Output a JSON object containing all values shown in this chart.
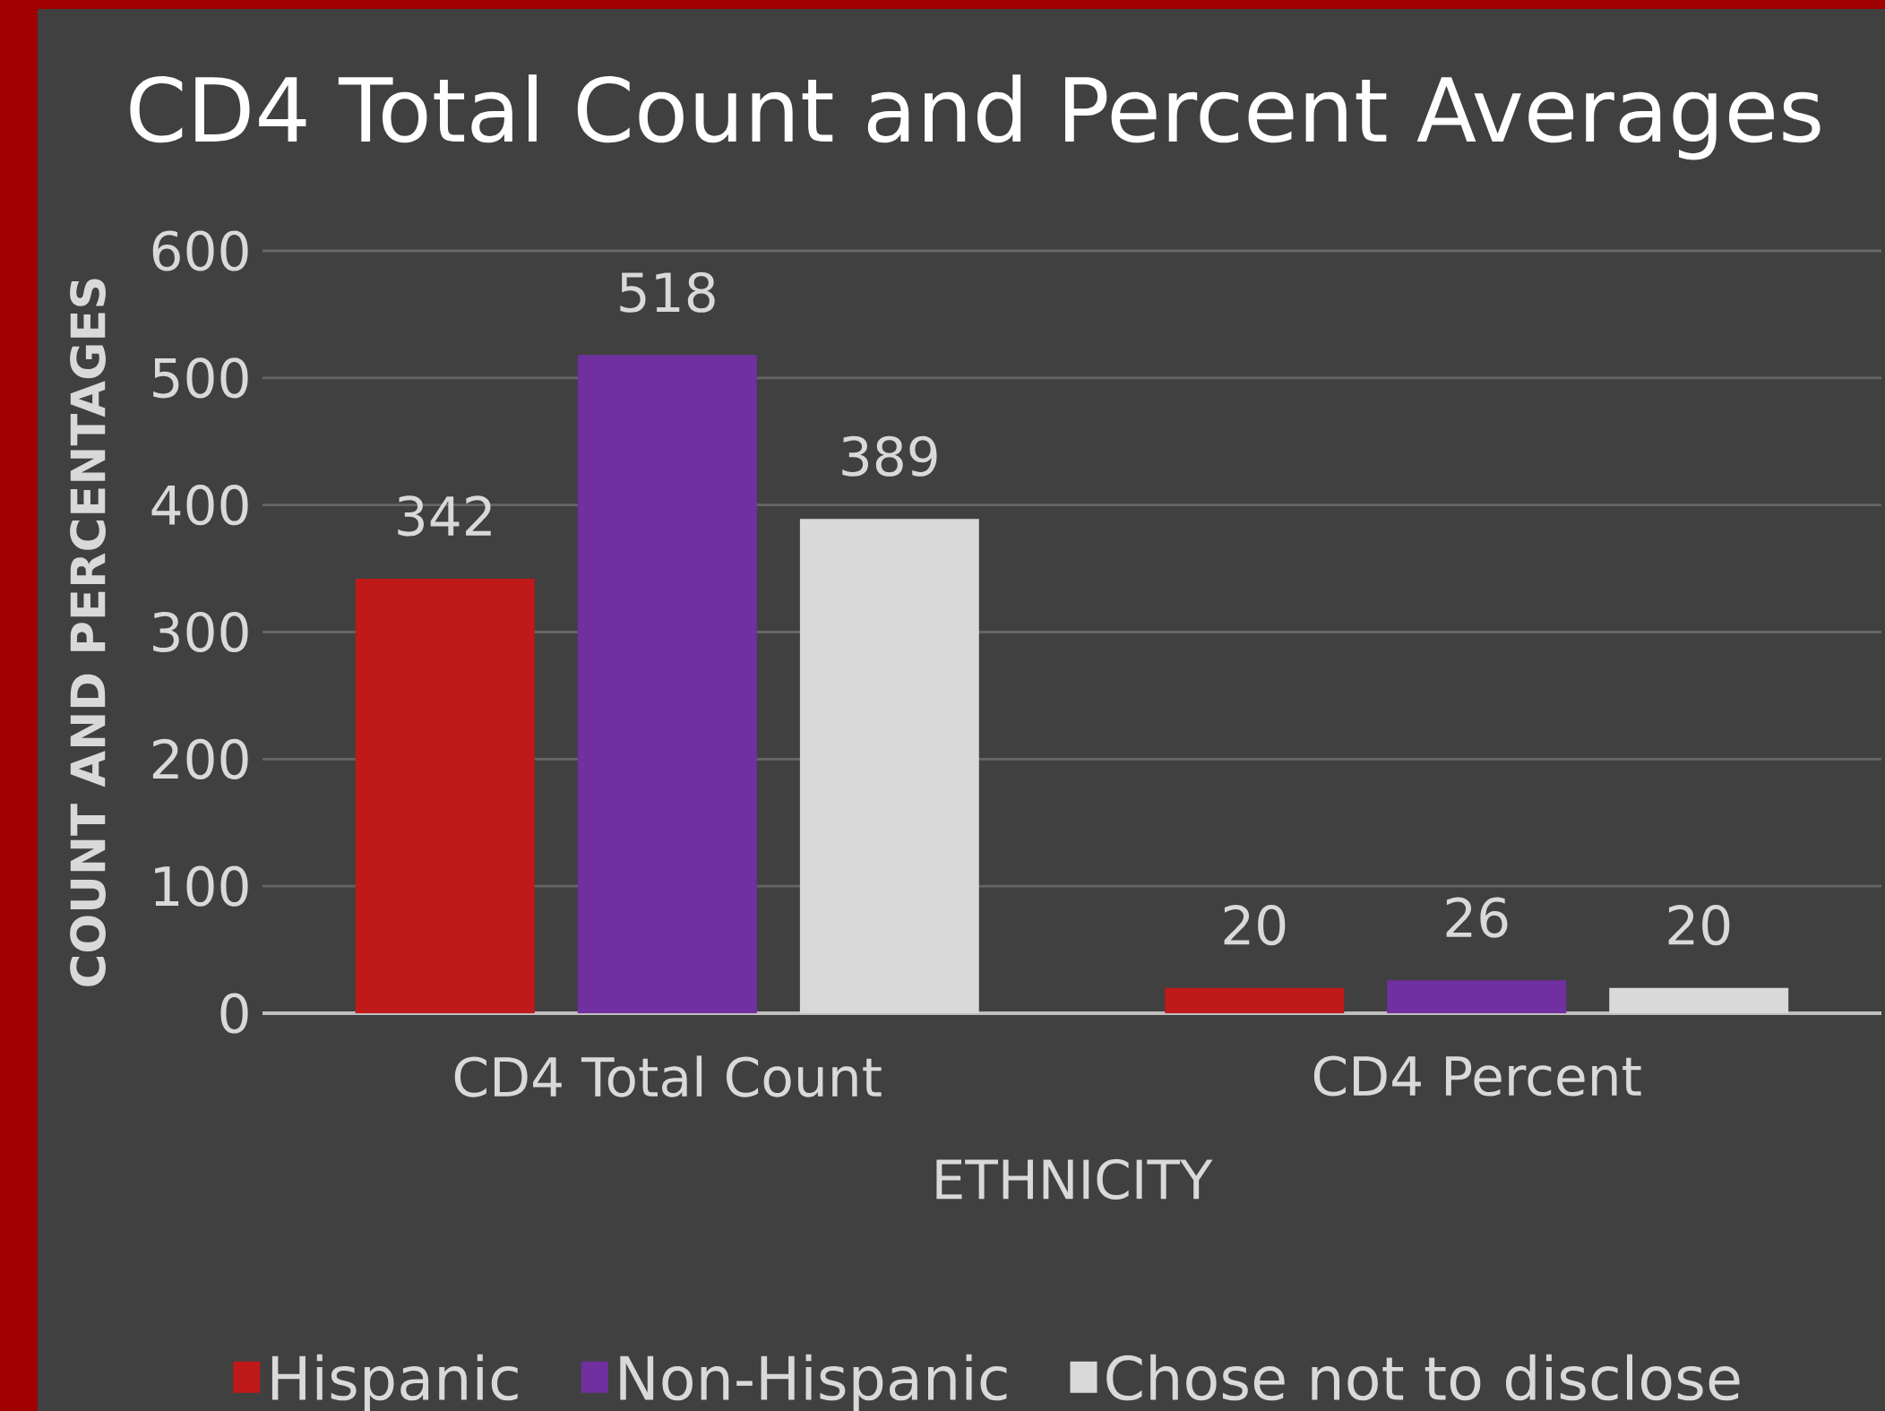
{
  "chart_data": {
    "type": "bar",
    "title": "CD4 Total Count and Percent Averages",
    "xlabel": "ETHNICITY",
    "ylabel": "COUNT AND PERCENTAGES",
    "categories": [
      "CD4 Total Count",
      "CD4 Percent"
    ],
    "series": [
      {
        "name": "Hispanic",
        "color": "#c0191a",
        "values": [
          342,
          20
        ]
      },
      {
        "name": "Non-Hispanic",
        "color": "#7030a0",
        "values": [
          518,
          26
        ]
      },
      {
        "name": "Chose not to disclose",
        "color": "#d9d9d9",
        "values": [
          389,
          20
        ]
      }
    ],
    "ylim": [
      0,
      600
    ],
    "yticks": [
      0,
      100,
      200,
      300,
      400,
      500,
      600
    ],
    "grid": "y",
    "legend": "bottom",
    "data_labels": true
  }
}
